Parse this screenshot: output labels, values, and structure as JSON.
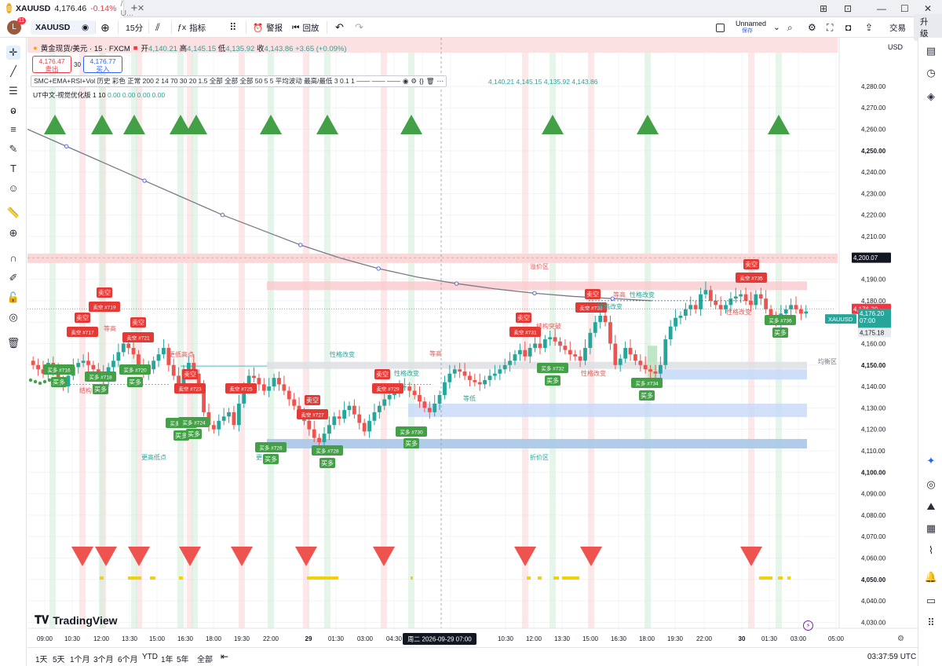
{
  "window": {
    "tab_title": "XAUUSD",
    "tab_price": "4,176.46",
    "tab_change": "-0.14%",
    "tab_suffix": "/ U..."
  },
  "toolbar": {
    "avatar_letter": "L",
    "avatar_badge": "11",
    "symbol": "XAUUSD",
    "interval": "15分",
    "indicators_label": "指标",
    "alert_label": "警报",
    "replay_label": "回放",
    "layout_name": "Unnamed",
    "layout_status": "保存",
    "trade_label": "交易",
    "upgrade_label": "升级"
  },
  "legend": {
    "name": "黄金现货/美元 · 15 · FXCM",
    "open_label": "开",
    "open": "4,140.21",
    "high_label": "高",
    "high": "4,145.15",
    "low_label": "低",
    "low": "4,135.92",
    "close_label": "收",
    "close": "4,143.86",
    "change": "+3.65 (+0.09%)",
    "sell_price": "4,176.47",
    "sell_label": "卖出",
    "spread": "30",
    "buy_price": "4,176.77",
    "buy_label": "买入",
    "indicator1": "SMC+EMA+RSI+Vol 历史 彩色 正常 200 2 14 70 30 20 1.5 全部 全部 全部 50 5 5 平均波动 最高/最低 3 0.1 1 —— —— ——",
    "indicator1_values": "4,140.21  4,145.15  4,135.92  4,143.86",
    "indicator2": "UT中文-视觉优化版 1 10",
    "indicator2_values": "0.00  0.00  0.00  0.00"
  },
  "axis": {
    "currency": "USD",
    "price_ticks": [
      "4,280.00",
      "4,270.00",
      "4,260.00",
      "4,250.00",
      "4,240.00",
      "4,230.00",
      "4,220.00",
      "4,210.00",
      "4,200.00",
      "4,190.00",
      "4,180.00",
      "4,170.00",
      "4,160.00",
      "4,150.00",
      "4,140.00",
      "4,130.00",
      "4,120.00",
      "4,110.00",
      "4,100.00",
      "4,090.00",
      "4,080.00",
      "4,070.00",
      "4,060.00",
      "4,050.00",
      "4,040.00",
      "4,030.00"
    ],
    "crosshair_price": "4,200.07",
    "last_price": "4,176.20",
    "last_price_red": "4,176.20",
    "symbol_tag": "XAUUSD",
    "countdown": "07:00",
    "prev_price": "4,175.18",
    "time_ticks": [
      "09:00",
      "10:30",
      "12:00",
      "13:30",
      "15:00",
      "16:30",
      "18:00",
      "19:30",
      "22:00",
      "29",
      "01:30",
      "03:00",
      "04:30",
      "06:00",
      "09:00",
      "10:30",
      "12:00",
      "13:30",
      "15:00",
      "16:30",
      "18:00",
      "19:30",
      "22:00",
      "30",
      "01:30",
      "03:00",
      "05:00"
    ],
    "crosshair_time": "周二 2026-09-29  07:00"
  },
  "annotations": {
    "sell_tag": "卖空",
    "buy_tag": "买多",
    "premium_zone": "溢价区",
    "discount_zone": "折价区",
    "equilibrium": "均衡区",
    "choch": "性格改变",
    "bos": "结构突破",
    "eq_high": "等高",
    "eq_low": "等低",
    "higher_high": "更高高点",
    "lower_high": "更低高点",
    "higher_low": "更高低点",
    "bos_short": "结构"
  },
  "sell_labels": [
    "卖空 #717",
    "卖空 #719",
    "卖空 #721",
    "卖空 #723",
    "卖空 #725",
    "卖空 #727",
    "卖空 #729",
    "卖空 #731",
    "卖空 #733",
    "卖空 #735"
  ],
  "buy_labels": [
    "买多 #716",
    "买多 #718",
    "买多 #720",
    "买多 #722",
    "买多 #724",
    "买多 #726",
    "买多 #728",
    "买多 #730",
    "买多 #732",
    "买多 #734",
    "买多 #736"
  ],
  "range_buttons": [
    "1天",
    "5天",
    "1个月",
    "3个月",
    "6个月",
    "YTD",
    "1年",
    "5年",
    "全部"
  ],
  "clock": "03:37:59 UTC",
  "watermark": "TradingView",
  "colors": {
    "up": "#26a69a",
    "down": "#ef5350",
    "buy_tag": "#43a047",
    "sell_tag": "#e53935",
    "ema": "#787b86",
    "accent": "#2962ff"
  },
  "chart_data": {
    "type": "candlestick",
    "title": "黄金现货/美元 · 15 · FXCM",
    "ylim": [
      4025,
      4290
    ],
    "ema_y": [
      4260,
      4252,
      4244,
      4236,
      4228,
      4220,
      4213,
      4206,
      4200,
      4195,
      4191,
      4188,
      4185.5,
      4183.5,
      4182,
      4181,
      4180
    ],
    "closes": [
      4150,
      4148,
      4146,
      4151,
      4147,
      4143,
      4140,
      4145,
      4149,
      4151,
      4152,
      4150,
      4148,
      4146,
      4143,
      4149,
      4152,
      4156,
      4160,
      4158,
      4155,
      4150,
      4146,
      4148,
      4152,
      4155,
      4158,
      4150,
      4145,
      4141,
      4148,
      4151,
      4146,
      4140,
      4128,
      4122,
      4120,
      4124,
      4126,
      4128,
      4122,
      4132,
      4140,
      4145,
      4144,
      4141,
      4138,
      4140,
      4144,
      4141,
      4138,
      4134,
      4131,
      4128,
      4124,
      4120,
      4116,
      4114,
      4118,
      4122,
      4126,
      4125,
      4129,
      4131,
      4127,
      4123,
      4119,
      4124,
      4128,
      4131,
      4134,
      4136,
      4138,
      4140,
      4140,
      4138,
      4136,
      4133,
      4130,
      4128,
      4132,
      4136,
      4142,
      4146,
      4148,
      4147,
      4145,
      4143,
      4142,
      4141,
      4143,
      4145,
      4146,
      4148,
      4150,
      4152,
      4155,
      4157,
      4154,
      4158,
      4160,
      4158,
      4162,
      4163,
      4161,
      4159,
      4157,
      4155,
      4154,
      4152,
      4158,
      4165,
      4170,
      4173,
      4170,
      4160,
      4150,
      4153,
      4158,
      4155,
      4152,
      4150,
      4148,
      4147,
      4146,
      4150,
      4162,
      4168,
      4172,
      4173,
      4176,
      4178,
      4176,
      4183,
      4185,
      4180,
      4178,
      4176,
      4178,
      4181,
      4182,
      4183,
      4180,
      4178,
      4183,
      4181,
      4176,
      4172,
      4170,
      4174,
      4176,
      4178,
      4176,
      4174,
      4175
    ]
  }
}
